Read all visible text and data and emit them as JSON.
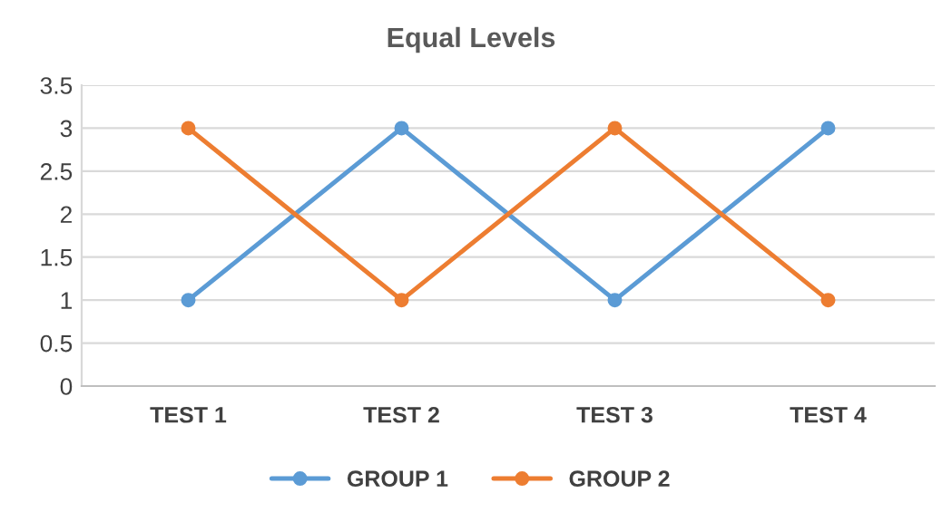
{
  "chart_data": {
    "type": "line",
    "title": "Equal Levels",
    "categories": [
      "TEST 1",
      "TEST 2",
      "TEST 3",
      "TEST 4"
    ],
    "series": [
      {
        "name": "GROUP 1",
        "color": "#5b9bd5",
        "values": [
          1,
          3,
          1,
          3
        ]
      },
      {
        "name": "GROUP 2",
        "color": "#ed7d31",
        "values": [
          3,
          1,
          3,
          1
        ]
      }
    ],
    "ylim": [
      0,
      3.5
    ],
    "yticks": [
      0,
      0.5,
      1,
      1.5,
      2,
      2.5,
      3,
      3.5
    ],
    "grid": "y",
    "legend": "bottom",
    "marker": "circle",
    "line_style": "solid"
  }
}
